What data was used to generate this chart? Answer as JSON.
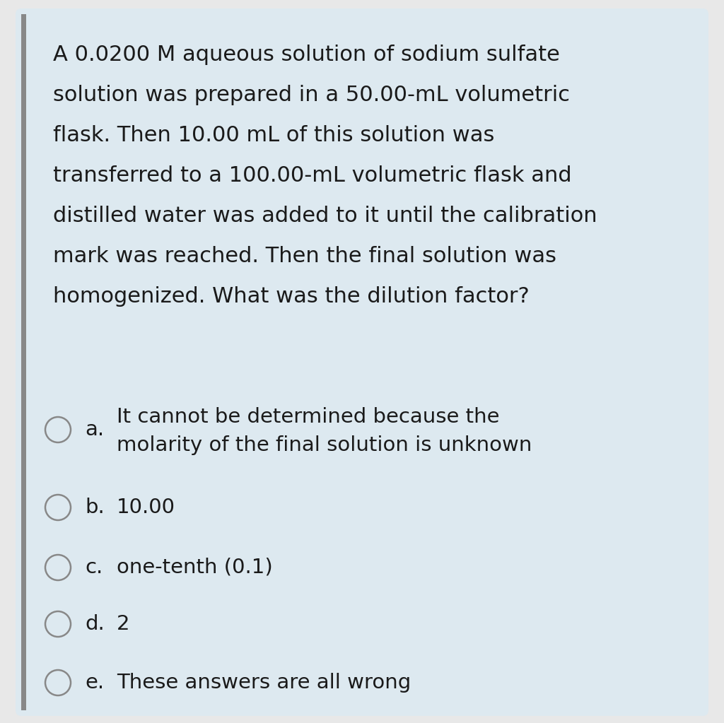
{
  "bg_color": "#dde9f0",
  "outer_bg": "#e8e8e8",
  "text_color": "#1a1a1a",
  "question_lines": [
    "A 0.0200 M aqueous solution of sodium sulfate",
    "solution was prepared in a 50.00-mL volumetric",
    "flask. Then 10.00 mL of this solution was",
    "transferred to a 100.00-mL volumetric flask and",
    "distilled water was added to it until the calibration",
    "mark was reached. Then the final solution was",
    "homogenized. What was the dilution factor?"
  ],
  "options": [
    {
      "label": "a.",
      "line1": "It cannot be determined because the",
      "line2": "molarity of the final solution is unknown"
    },
    {
      "label": "b.",
      "line1": "10.00",
      "line2": null
    },
    {
      "label": "c.",
      "line1": "one-tenth (0.1)",
      "line2": null
    },
    {
      "label": "d.",
      "line1": "2",
      "line2": null
    },
    {
      "label": "e.",
      "line1": "These answers are all wrong",
      "line2": null
    }
  ],
  "font_size_question": 22,
  "font_size_options": 21,
  "left_bar_color": "#888888",
  "circle_edge_color": "#888888",
  "circle_face_color": "#dde9f0",
  "circle_size": 18
}
